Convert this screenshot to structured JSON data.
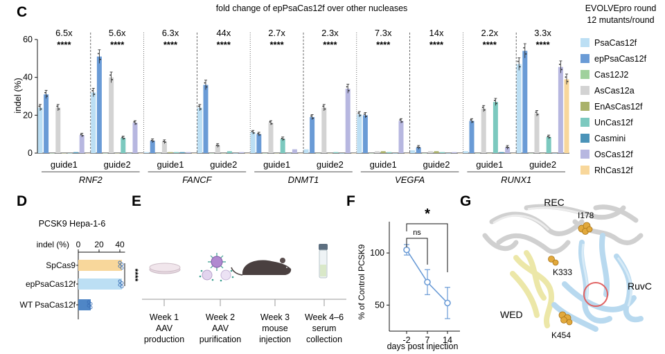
{
  "panel_labels": {
    "c": "C",
    "d": "D",
    "e": "E",
    "f": "F",
    "g": "G"
  },
  "chart_data": [
    {
      "panel": "C",
      "type": "bar",
      "title": "fold change of epPsaCas12f over other nucleases",
      "corner_note": [
        "EVOLVEpro round",
        "12 mutants/round"
      ],
      "ylabel": "indel (%)",
      "ylim": [
        0,
        60
      ],
      "yticks": [
        "0",
        "20",
        "40",
        "60"
      ],
      "legend_position": "right",
      "series": [
        {
          "name": "PsaCas12f",
          "color": "#bcdff4"
        },
        {
          "name": "epPsaCas12f",
          "color": "#6a9bd6"
        },
        {
          "name": "Cas12J2",
          "color": "#9fd19c"
        },
        {
          "name": "AsCas12a",
          "color": "#d3d3d3"
        },
        {
          "name": "EnAsCas12f",
          "color": "#aab26a"
        },
        {
          "name": "UnCas12f",
          "color": "#7cc9bf"
        },
        {
          "name": "Casmini",
          "color": "#4a93b8"
        },
        {
          "name": "OsCas12f",
          "color": "#b7b7e0"
        },
        {
          "name": "RhCas12f",
          "color": "#f8d79b"
        }
      ],
      "groups": [
        {
          "guide": "guide1",
          "fold": "6.5x",
          "sig": "****",
          "values": [
            24,
            31,
            0,
            24,
            0,
            0,
            0.5,
            9.5,
            0
          ]
        },
        {
          "guide": "guide2",
          "fold": "5.6x",
          "sig": "****",
          "values": [
            32,
            51,
            0,
            40,
            0,
            8,
            0,
            16,
            0
          ]
        },
        {
          "guide": "guide1",
          "fold": "6.3x",
          "sig": "****",
          "values": [
            0.5,
            6.5,
            0,
            6,
            0.5,
            0.5,
            0.5,
            0.5,
            0
          ]
        },
        {
          "guide": "guide2",
          "fold": "44x",
          "sig": "****",
          "values": [
            24,
            36,
            0,
            4,
            0,
            1,
            0,
            0.5,
            0
          ]
        },
        {
          "guide": "guide1",
          "fold": "2.7x",
          "sig": "****",
          "values": [
            11,
            10,
            0,
            16,
            0,
            7.5,
            0,
            2,
            0
          ]
        },
        {
          "guide": "guide2",
          "fold": "2.3x",
          "sig": "****",
          "values": [
            2,
            19,
            0,
            24,
            0,
            0.5,
            0,
            34,
            0
          ]
        },
        {
          "guide": "guide1",
          "fold": "7.3x",
          "sig": "****",
          "values": [
            20.5,
            20,
            0,
            1,
            1,
            0.5,
            0,
            17,
            0
          ]
        },
        {
          "guide": "guide2",
          "fold": "14x",
          "sig": "****",
          "values": [
            1.5,
            3,
            0,
            1,
            1,
            0.5,
            0,
            0.5,
            0
          ]
        },
        {
          "guide": "guide1",
          "fold": "2.2x",
          "sig": "****",
          "values": [
            1,
            17,
            0,
            23.5,
            0,
            27,
            0.5,
            3,
            0
          ]
        },
        {
          "guide": "guide2",
          "fold": "3.3x",
          "sig": "****",
          "values": [
            47,
            54,
            0,
            21,
            0,
            8.5,
            0,
            45.5,
            39
          ]
        }
      ],
      "genes": [
        "RNF2",
        "FANCF",
        "DNMT1",
        "VEGFA",
        "RUNX1"
      ]
    },
    {
      "panel": "D",
      "type": "bar",
      "orientation": "horizontal",
      "title": "PCSK9 Hepa-1-6",
      "xlabel": "indel (%)",
      "xlim": [
        0,
        50
      ],
      "xticks": [
        "0",
        "20",
        "40"
      ],
      "categories": [
        "SpCas9",
        "epPsaCas12f",
        "WT PsaCas12f"
      ],
      "values": [
        42,
        42,
        12
      ],
      "colors": [
        "#f8d79b",
        "#bcdff4",
        "#4f86c6"
      ],
      "sig": "****"
    },
    {
      "panel": "F",
      "type": "line",
      "ylabel": "% of Control PCSK9",
      "xlabel": "days post injection",
      "categories": [
        "-2",
        "7",
        "14"
      ],
      "values": [
        103,
        72,
        52
      ],
      "errors": [
        5,
        12,
        15
      ],
      "ylim": [
        25,
        130
      ],
      "yticks": [
        "50",
        "100"
      ],
      "color": "#6a9bd6",
      "annotations": {
        "ns": "ns",
        "star": "*"
      }
    }
  ],
  "panel_e": {
    "steps": [
      {
        "week": "Week 1",
        "line2": "AAV",
        "line3": "production"
      },
      {
        "week": "Week 2",
        "line2": "AAV",
        "line3": "purification"
      },
      {
        "week": "Week 3",
        "line2": "mouse",
        "line3": "injection"
      },
      {
        "week": "Week 4–6",
        "line2": "serum",
        "line3": "collection"
      }
    ]
  },
  "panel_g": {
    "labels": {
      "rec": "REC",
      "i178": "I178",
      "k333": "K333",
      "ruvc": "RuvC",
      "wed": "WED",
      "k454": "K454"
    },
    "colors": {
      "rec": "#d9d9d9",
      "wed": "#eeeab0",
      "ruvc": "#b8d9ef",
      "residue": "#e2a93c",
      "circle": "#e06060"
    }
  }
}
